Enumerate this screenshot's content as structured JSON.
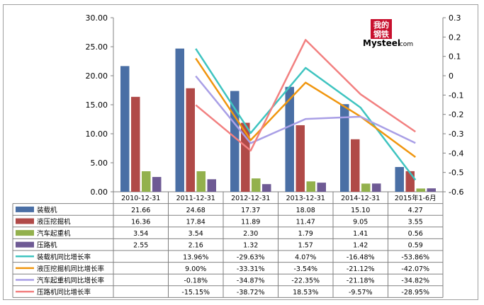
{
  "logo": {
    "line1": "我的",
    "line2": "钢铁",
    "brand_main": "Mysteel",
    "brand_suffix": ".com"
  },
  "chart_data": {
    "type": "bar+line",
    "categories": [
      "2010-12-31",
      "2011-12-31",
      "2012-12-31",
      "2013-12-31",
      "2014-12-31",
      "2015年1-6月"
    ],
    "y_left": {
      "min": 0,
      "max": 30,
      "step": 5,
      "tick_labels": [
        "0.00",
        "5.00",
        "10.00",
        "15.00",
        "20.00",
        "25.00",
        "30.00"
      ]
    },
    "y_right": {
      "min": -0.6,
      "max": 0.3,
      "step": 0.1,
      "tick_labels": [
        "-0.6",
        "-0.5",
        "-0.4",
        "-0.3",
        "-0.2",
        "-0.1",
        "0",
        "0.1",
        "0.2",
        "0.3"
      ]
    },
    "bar_series": [
      {
        "name": "装载机",
        "color": "#4a6fa5",
        "values": [
          21.66,
          24.68,
          17.37,
          18.08,
          15.1,
          4.27
        ],
        "labels": [
          "21.66",
          "24.68",
          "17.37",
          "18.08",
          "15.10",
          "4.27"
        ]
      },
      {
        "name": "液压挖掘机",
        "color": "#b04a48",
        "values": [
          16.36,
          17.84,
          11.89,
          11.47,
          9.05,
          3.55
        ],
        "labels": [
          "16.36",
          "17.84",
          "11.89",
          "11.47",
          "9.05",
          "3.55"
        ]
      },
      {
        "name": "汽车起重机",
        "color": "#93b14d",
        "values": [
          3.54,
          3.54,
          2.3,
          1.79,
          1.41,
          0.56
        ],
        "labels": [
          "3.54",
          "3.54",
          "2.30",
          "1.79",
          "1.41",
          "0.56"
        ]
      },
      {
        "name": "压路机",
        "color": "#6e5a94",
        "values": [
          2.55,
          2.16,
          1.32,
          1.57,
          1.42,
          0.59
        ],
        "labels": [
          "2.55",
          "2.16",
          "1.32",
          "1.57",
          "1.42",
          "0.59"
        ]
      }
    ],
    "line_series": [
      {
        "name": "装载机同比增长率",
        "color": "#3fc4c0",
        "values": [
          null,
          0.1396,
          -0.2963,
          0.0407,
          -0.1648,
          -0.5386
        ],
        "labels": [
          "",
          "13.96%",
          "-29.63%",
          "4.07%",
          "-16.48%",
          "-53.86%"
        ]
      },
      {
        "name": "液压挖掘机同比增长率",
        "color": "#f0960f",
        "values": [
          null,
          0.09,
          -0.3331,
          -0.0354,
          -0.2112,
          -0.4207
        ],
        "labels": [
          "",
          "9.00%",
          "-33.31%",
          "-3.54%",
          "-21.12%",
          "-42.07%"
        ]
      },
      {
        "name": "汽车起重机同比增长率",
        "color": "#a99fe6",
        "values": [
          null,
          -0.0018,
          -0.3487,
          -0.2235,
          -0.2118,
          -0.3482
        ],
        "labels": [
          "",
          "-0.18%",
          "-34.87%",
          "-22.35%",
          "-21.18%",
          "-34.82%"
        ]
      },
      {
        "name": "压路机同比增长率",
        "color": "#f28080",
        "values": [
          null,
          -0.1515,
          -0.3872,
          0.1853,
          -0.0957,
          -0.2895
        ],
        "labels": [
          "",
          "-15.15%",
          "-38.72%",
          "18.53%",
          "-9.57%",
          "-28.95%"
        ]
      }
    ]
  }
}
